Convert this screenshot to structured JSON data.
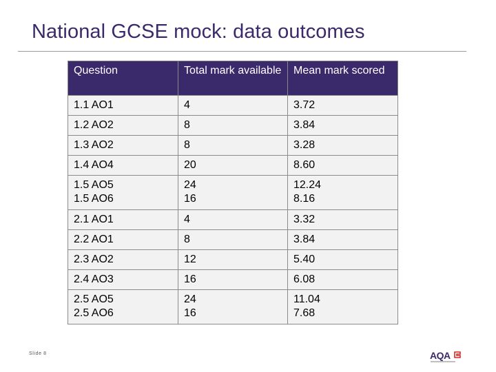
{
  "title": "National GCSE mock: data outcomes",
  "table": {
    "headers": [
      "Question",
      "Total mark available",
      "Mean mark scored"
    ],
    "rows": [
      {
        "question": [
          "1.1 AO1"
        ],
        "total": [
          "4"
        ],
        "mean": [
          "3.72"
        ]
      },
      {
        "question": [
          "1.2 AO2"
        ],
        "total": [
          "8"
        ],
        "mean": [
          "3.84"
        ]
      },
      {
        "question": [
          "1.3 AO2"
        ],
        "total": [
          "8"
        ],
        "mean": [
          "3.28"
        ]
      },
      {
        "question": [
          "1.4 AO4"
        ],
        "total": [
          "20"
        ],
        "mean": [
          "8.60"
        ]
      },
      {
        "question": [
          "1.5 AO5",
          "1.5 AO6"
        ],
        "total": [
          "24",
          "16"
        ],
        "mean": [
          "12.24",
          "8.16"
        ]
      },
      {
        "question": [
          "2.1 AO1"
        ],
        "total": [
          "4"
        ],
        "mean": [
          "3.32"
        ]
      },
      {
        "question": [
          "2.2 AO1"
        ],
        "total": [
          "8"
        ],
        "mean": [
          "3.84"
        ]
      },
      {
        "question": [
          "2.3 AO2"
        ],
        "total": [
          "12"
        ],
        "mean": [
          "5.40"
        ]
      },
      {
        "question": [
          "2.4 AO3"
        ],
        "total": [
          "16"
        ],
        "mean": [
          "6.08"
        ]
      },
      {
        "question": [
          "2.5 AO5",
          "2.5 AO6"
        ],
        "total": [
          "24",
          "16"
        ],
        "mean": [
          "11.04",
          "7.68"
        ]
      }
    ]
  },
  "footer": {
    "slide_label": "Slide 8",
    "logo_text": "AQA",
    "logo_icon": "aqa-swoosh-icon"
  },
  "colors": {
    "brand_purple": "#3b2a6b",
    "header_text": "#ffffff",
    "cell_background": "#f2f2f2",
    "logo_accent": "#d62828"
  }
}
